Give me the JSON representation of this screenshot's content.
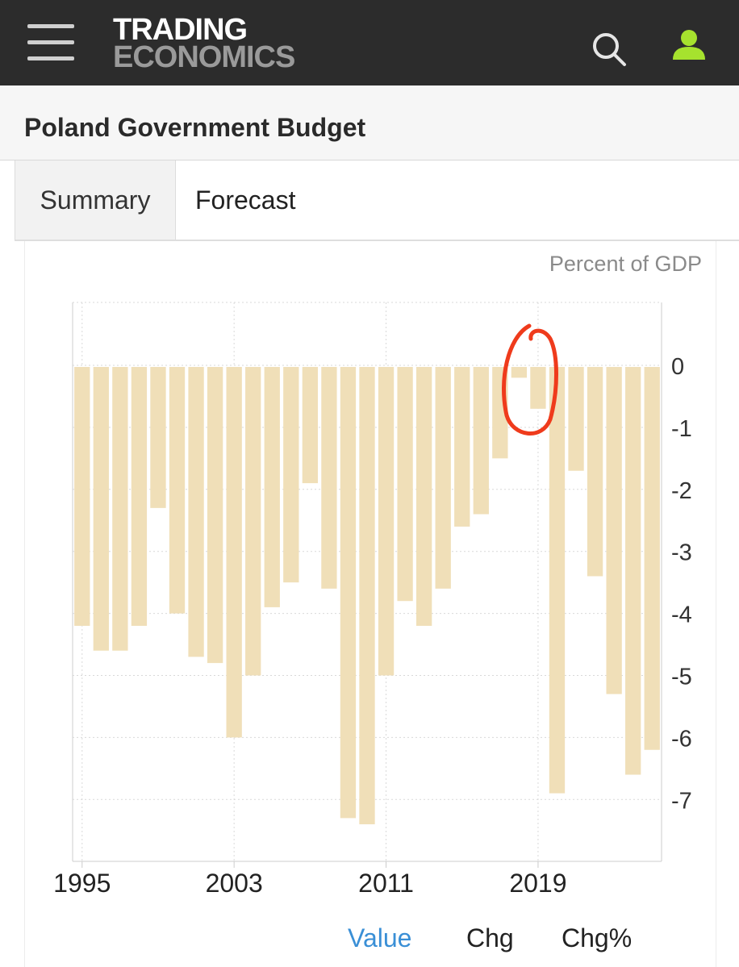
{
  "header": {
    "logo_line1": "TRADING",
    "logo_line2": "ECONOMICS",
    "icons": [
      "menu-icon",
      "search-icon",
      "user-icon"
    ],
    "accent_user": "#a6e22e"
  },
  "page": {
    "title": "Poland Government Budget"
  },
  "tabs": [
    {
      "label": "Summary"
    },
    {
      "label": "Forecast"
    }
  ],
  "toggles": [
    {
      "label": "Value",
      "active": true
    },
    {
      "label": "Chg",
      "active": false
    },
    {
      "label": "Chg%",
      "active": false
    }
  ],
  "colors": {
    "bar": "#f0dfb8",
    "annotation": "#ef3b1c",
    "active_toggle": "#3a8fd6"
  },
  "chart_data": {
    "type": "bar",
    "unit_label": "Percent of GDP",
    "x": [
      1995,
      1996,
      1997,
      1998,
      1999,
      2000,
      2001,
      2002,
      2003,
      2004,
      2005,
      2006,
      2007,
      2008,
      2009,
      2010,
      2011,
      2012,
      2013,
      2014,
      2015,
      2016,
      2017,
      2018,
      2019,
      2020,
      2021,
      2022,
      2023,
      2024,
      2025
    ],
    "values": [
      -4.2,
      -4.6,
      -4.6,
      -4.2,
      -2.3,
      -4.0,
      -4.7,
      -4.8,
      -6.0,
      -5.0,
      -3.9,
      -3.5,
      -1.9,
      -3.6,
      -7.3,
      -7.4,
      -5.0,
      -3.8,
      -4.2,
      -3.6,
      -2.6,
      -2.4,
      -1.5,
      -0.2,
      -0.7,
      -6.9,
      -1.7,
      -3.4,
      -5.3,
      -6.6,
      -6.2
    ],
    "xticks": [
      "1995",
      "2003",
      "2011",
      "2019"
    ],
    "yticks": [
      "0",
      "-1",
      "-2",
      "-3",
      "-4",
      "-5",
      "-6",
      "-7"
    ],
    "ylim": [
      -7.9,
      1.0
    ],
    "axis_position": "right",
    "grid": true,
    "annotation": "hand-drawn red circle around 2018–2019 bars"
  }
}
